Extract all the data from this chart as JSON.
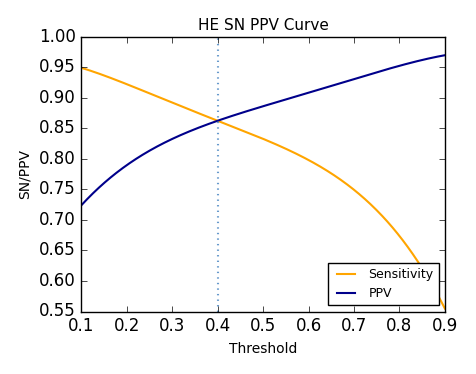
{
  "title": "HE SN PPV Curve",
  "xlabel": "Threshold",
  "ylabel": "SN/PPV",
  "xlim": [
    0.1,
    0.9
  ],
  "ylim": [
    0.55,
    1.0
  ],
  "xticks": [
    0.1,
    0.2,
    0.3,
    0.4,
    0.5,
    0.6,
    0.7,
    0.8,
    0.9
  ],
  "yticks": [
    0.55,
    0.6,
    0.65,
    0.7,
    0.75,
    0.8,
    0.85,
    0.9,
    0.95,
    1.0
  ],
  "vline_x": 0.4,
  "vline_color": "#6699CC",
  "sensitivity_color": "#FFA500",
  "ppv_color": "#00008B",
  "sens_x": [
    0.1,
    0.2,
    0.3,
    0.4,
    0.5,
    0.6,
    0.7,
    0.75,
    0.8,
    0.85,
    0.9
  ],
  "sens_y": [
    0.95,
    0.92,
    0.896,
    0.862,
    0.83,
    0.8,
    0.75,
    0.718,
    0.67,
    0.622,
    0.555
  ],
  "ppv_x": [
    0.1,
    0.15,
    0.2,
    0.3,
    0.4,
    0.5,
    0.6,
    0.7,
    0.8,
    0.9
  ],
  "ppv_y": [
    0.725,
    0.758,
    0.792,
    0.833,
    0.862,
    0.886,
    0.91,
    0.93,
    0.953,
    0.97
  ],
  "figsize": [
    4.76,
    3.74
  ],
  "dpi": 100
}
